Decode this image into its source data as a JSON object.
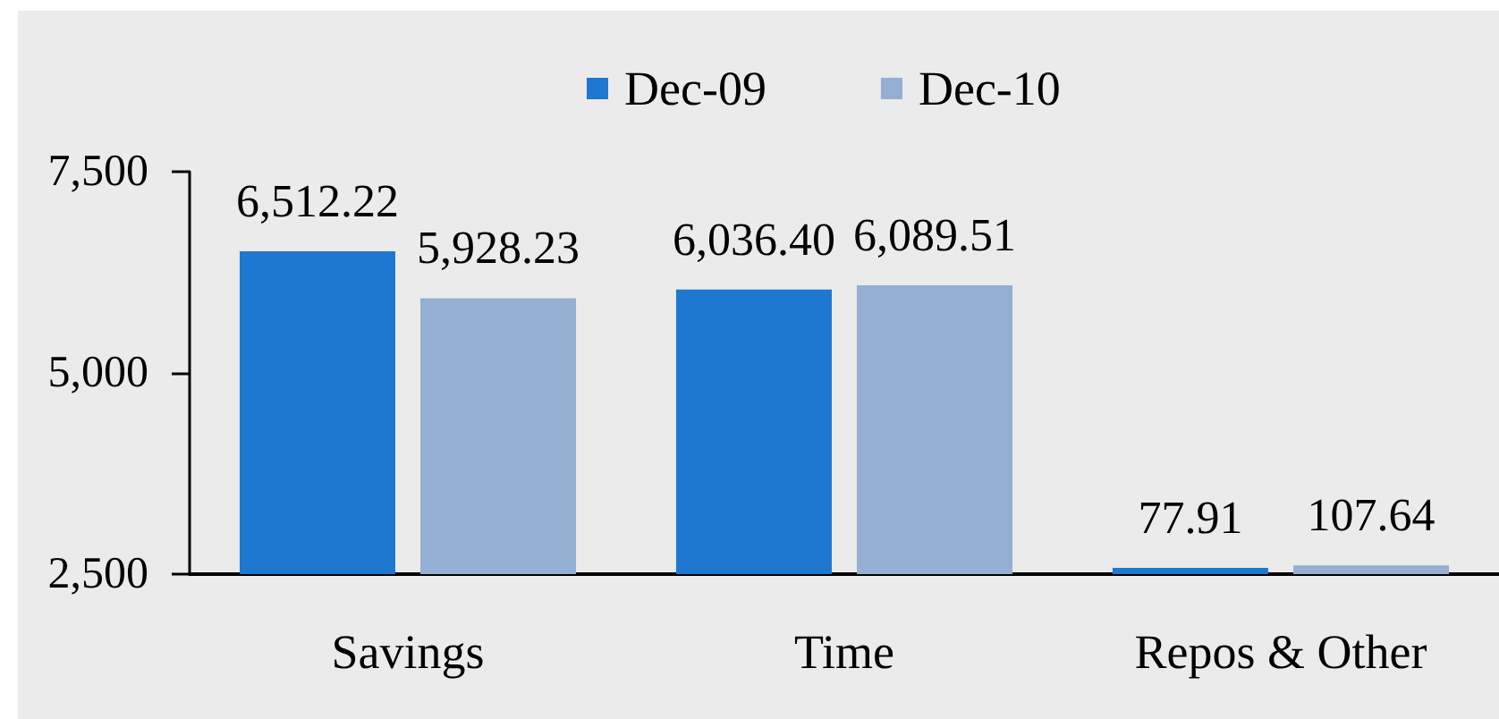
{
  "chart_data": {
    "type": "bar",
    "categories": [
      "Savings",
      "Time",
      "Repos & Other"
    ],
    "series": [
      {
        "name": "Dec-09",
        "color": "#1f78cf",
        "values": [
          6512.22,
          6036.4,
          77.91
        ],
        "base": [
          null,
          null,
          2500
        ],
        "value_labels": [
          "6,512.22",
          "6,036.40",
          "77.91"
        ]
      },
      {
        "name": "Dec-10",
        "color": "#94afd1",
        "values": [
          5928.23,
          6089.51,
          107.64
        ],
        "base": [
          null,
          null,
          2500
        ],
        "value_labels": [
          "5,928.23",
          "6,089.51",
          "107.64"
        ]
      }
    ],
    "ylim": [
      2500,
      7500
    ],
    "yticks": [
      {
        "value": 2500,
        "label": "2,500"
      },
      {
        "value": 5000,
        "label": "5,000"
      },
      {
        "value": 7500,
        "label": "7,500"
      }
    ],
    "legend": "top"
  }
}
